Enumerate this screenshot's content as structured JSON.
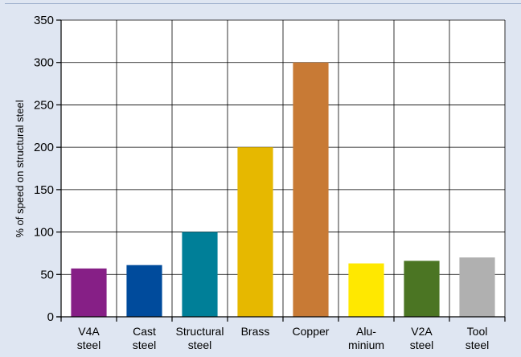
{
  "chart_data": {
    "type": "bar",
    "title": "",
    "xlabel": "",
    "ylabel": "% of speed on structural steel",
    "ylim": [
      0,
      350
    ],
    "yticks": [
      0,
      50,
      100,
      150,
      200,
      250,
      300,
      350
    ],
    "grid": true,
    "categories": [
      [
        "V4A",
        "steel"
      ],
      [
        "Cast",
        "steel"
      ],
      [
        "Structural",
        "steel"
      ],
      [
        "Brass"
      ],
      [
        "Copper"
      ],
      [
        "Alu-",
        "minium"
      ],
      [
        "V2A",
        "steel"
      ],
      [
        "Tool",
        "steel"
      ]
    ],
    "values": [
      57,
      61,
      100,
      200,
      300,
      63,
      66,
      70
    ],
    "colors": [
      "#861f86",
      "#004b9c",
      "#007f98",
      "#e6b800",
      "#c87a35",
      "#ffe800",
      "#4b7523",
      "#b0b0b0"
    ]
  }
}
